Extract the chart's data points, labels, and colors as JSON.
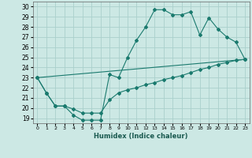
{
  "xlabel": "Humidex (Indice chaleur)",
  "ylabel": "",
  "background_color": "#cce8e4",
  "grid_color": "#aad0cc",
  "line_color": "#1a7a6e",
  "xlim": [
    -0.5,
    23.5
  ],
  "ylim": [
    18.5,
    30.5
  ],
  "xticks": [
    0,
    1,
    2,
    3,
    4,
    5,
    6,
    7,
    8,
    9,
    10,
    11,
    12,
    13,
    14,
    15,
    16,
    17,
    18,
    19,
    20,
    21,
    22,
    23
  ],
  "yticks": [
    19,
    20,
    21,
    22,
    23,
    24,
    25,
    26,
    27,
    28,
    29,
    30
  ],
  "line1_x": [
    0,
    1,
    2,
    3,
    4,
    5,
    6,
    7,
    8,
    9,
    10,
    11,
    12,
    13,
    14,
    15,
    16,
    17,
    18,
    19,
    20,
    21,
    22,
    23
  ],
  "line1_y": [
    23.0,
    21.5,
    20.2,
    20.2,
    19.3,
    18.8,
    18.8,
    18.8,
    23.3,
    23.0,
    25.0,
    26.7,
    28.0,
    29.7,
    29.7,
    29.2,
    29.2,
    29.5,
    27.2,
    28.9,
    27.8,
    27.0,
    26.5,
    24.8
  ],
  "line2_x": [
    0,
    1,
    2,
    3,
    4,
    5,
    6,
    7,
    8,
    9,
    10,
    11,
    12,
    13,
    14,
    15,
    16,
    17,
    18,
    19,
    20,
    21,
    22,
    23
  ],
  "line2_y": [
    23.0,
    21.5,
    20.2,
    20.2,
    19.9,
    19.5,
    19.5,
    19.5,
    20.8,
    21.5,
    21.8,
    22.0,
    22.3,
    22.5,
    22.8,
    23.0,
    23.2,
    23.5,
    23.8,
    24.0,
    24.3,
    24.5,
    24.7,
    24.8
  ],
  "line3_x": [
    0,
    23
  ],
  "line3_y": [
    23.0,
    24.8
  ]
}
